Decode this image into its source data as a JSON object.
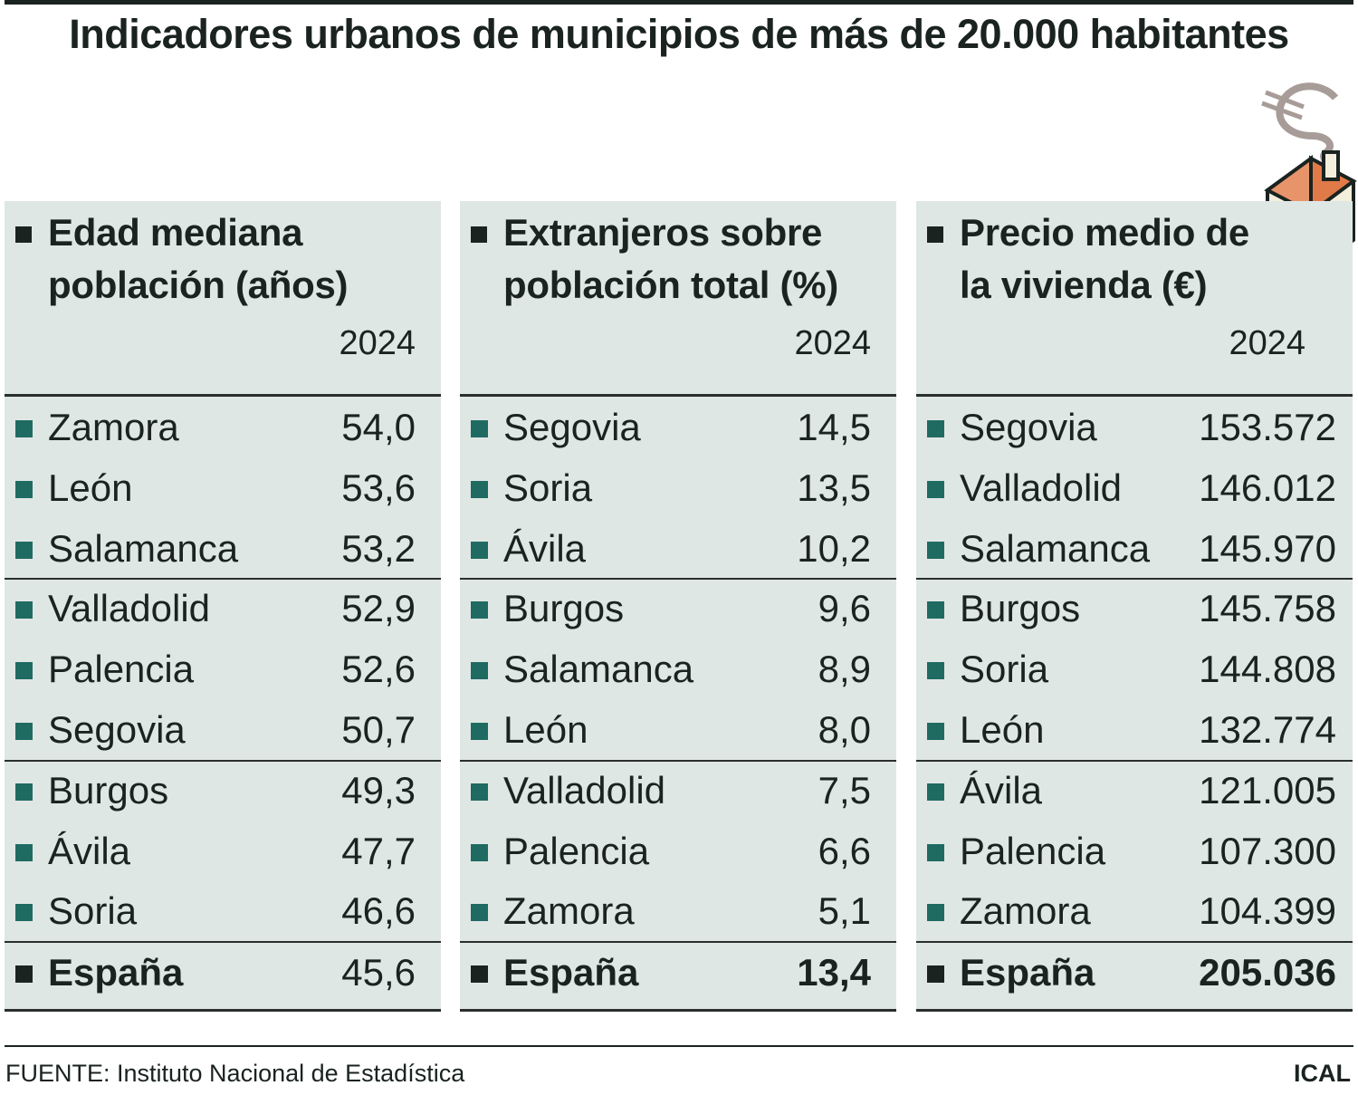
{
  "title": "Indicadores urbanos de municipios de más de 20.000 habitantes",
  "panels": [
    {
      "heading_line1": "Edad mediana",
      "heading_line2": "población (años)",
      "year": "2024",
      "rows": [
        {
          "name": "Zamora",
          "value": "54,0"
        },
        {
          "name": "León",
          "value": "53,6"
        },
        {
          "name": "Salamanca",
          "value": "53,2"
        },
        {
          "name": "Valladolid",
          "value": "52,9"
        },
        {
          "name": "Palencia",
          "value": "52,6"
        },
        {
          "name": "Segovia",
          "value": "50,7"
        },
        {
          "name": "Burgos",
          "value": "49,3"
        },
        {
          "name": "Ávila",
          "value": "47,7"
        },
        {
          "name": "Soria",
          "value": "46,6"
        }
      ],
      "total": {
        "name": "España",
        "value": "45,6"
      }
    },
    {
      "heading_line1": "Extranjeros sobre",
      "heading_line2": "población total (%)",
      "year": "2024",
      "rows": [
        {
          "name": "Segovia",
          "value": "14,5"
        },
        {
          "name": "Soria",
          "value": "13,5"
        },
        {
          "name": "Ávila",
          "value": "10,2"
        },
        {
          "name": "Burgos",
          "value": "9,6"
        },
        {
          "name": "Salamanca",
          "value": "8,9"
        },
        {
          "name": "León",
          "value": "8,0"
        },
        {
          "name": "Valladolid",
          "value": "7,5"
        },
        {
          "name": "Palencia",
          "value": "6,6"
        },
        {
          "name": "Zamora",
          "value": "5,1"
        }
      ],
      "total": {
        "name": "España",
        "value": "13,4"
      }
    },
    {
      "heading_line1": "Precio medio de",
      "heading_line2": "la vivienda (€)",
      "year": "2024",
      "rows": [
        {
          "name": "Segovia",
          "value": "153.572"
        },
        {
          "name": "Valladolid",
          "value": "146.012"
        },
        {
          "name": "Salamanca",
          "value": "145.970"
        },
        {
          "name": "Burgos",
          "value": "145.758"
        },
        {
          "name": "Soria",
          "value": "144.808"
        },
        {
          "name": "León",
          "value": "132.774"
        },
        {
          "name": "Ávila",
          "value": "121.005"
        },
        {
          "name": "Palencia",
          "value": "107.300"
        },
        {
          "name": "Zamora",
          "value": "104.399"
        }
      ],
      "total": {
        "name": "España",
        "value": "205.036"
      }
    }
  ],
  "illustration": "house-with-euro-smoke-icon",
  "colors": {
    "panel_bg": "#dfe7e5",
    "bullet": "#1f6b62",
    "text": "#1a2320",
    "roof": "#e8946a",
    "wall": "#f4efdc",
    "euro": "#a89c98"
  },
  "footer": {
    "source": "FUENTE: Instituto Nacional de Estadística",
    "credit": "ICAL"
  }
}
